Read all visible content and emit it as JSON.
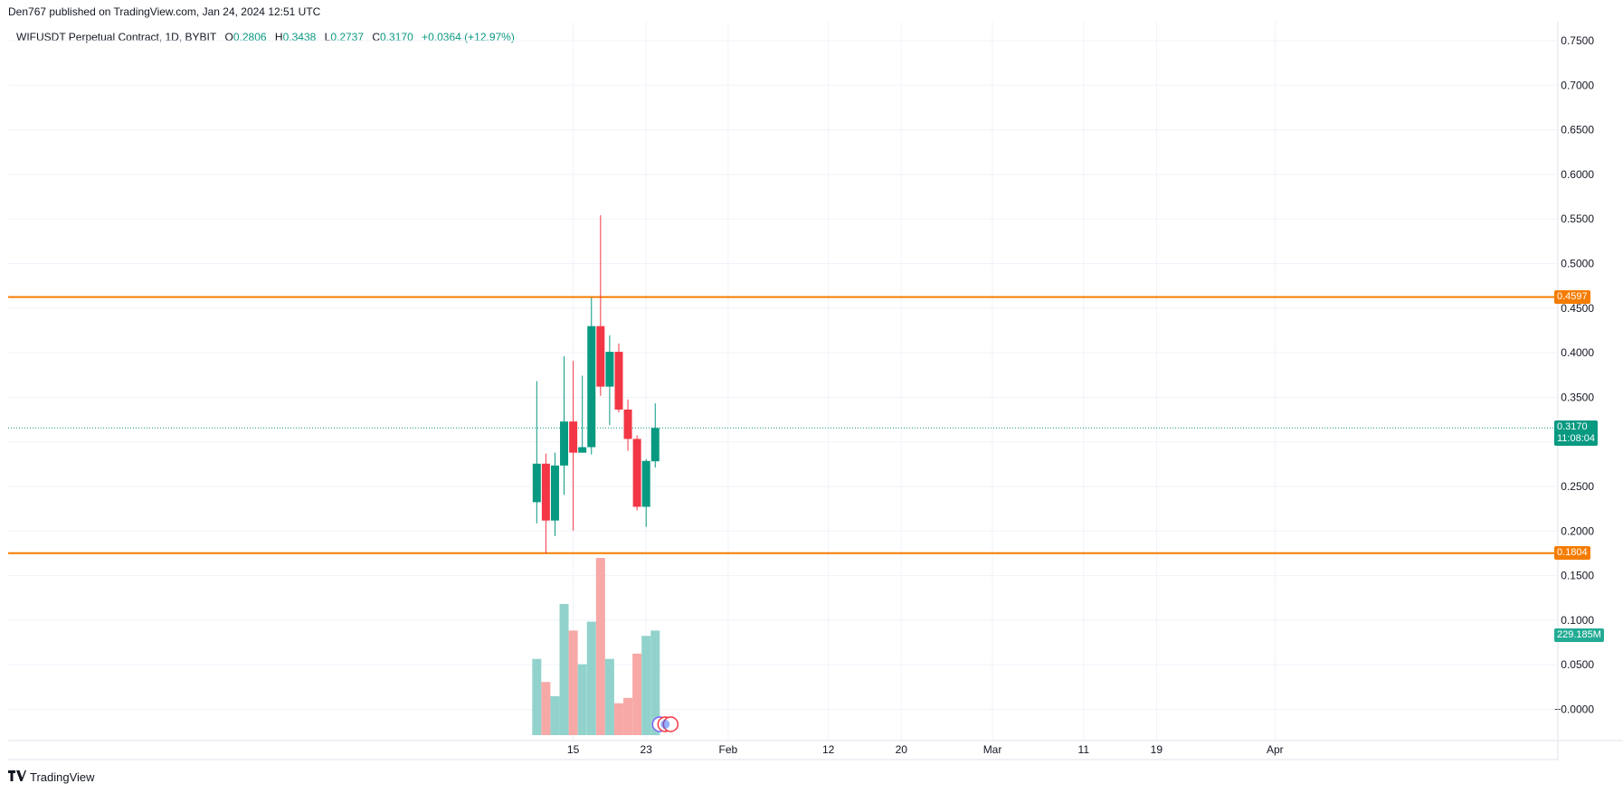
{
  "header": {
    "publish_line": "Den767 published on TradingView.com, Jan 24, 2024 12:51 UTC"
  },
  "legend": {
    "symbol": "WIFUSDT Perpetual Contract, 1D, BYBIT",
    "o_label": "O",
    "o_value": "0.2806",
    "h_label": "H",
    "h_value": "0.3438",
    "l_label": "L",
    "l_value": "0.2737",
    "c_label": "C",
    "c_value": "0.3170",
    "change": "+0.0364 (+12.97%)"
  },
  "colors": {
    "up": "#089981",
    "down": "#f23645",
    "level": "#f57c00",
    "up_vol": "#92d2cc",
    "down_vol": "#f7a9a7",
    "grid": "#f0f3fa"
  },
  "price_labels": {
    "resistance": "0.4597",
    "support": "0.1804",
    "last_price": "0.3170",
    "countdown": "11:08:04",
    "volume": "229.185M"
  },
  "footer": {
    "brand": "TradingView"
  },
  "chart_data": {
    "type": "candlestick",
    "symbol": "WIFUSDT Perpetual Contract",
    "interval": "1D",
    "exchange": "BYBIT",
    "y_ticks": [
      "0.7500",
      "0.7000",
      "0.6500",
      "0.6000",
      "0.5500",
      "0.5000",
      "0.4500",
      "0.4000",
      "0.3500",
      "0.3000",
      "0.2500",
      "0.2000",
      "0.1500",
      "0.1000",
      "0.0500",
      "−0.0000"
    ],
    "y_range": [
      -0.02,
      0.76
    ],
    "x_ticks": [
      {
        "label": "15",
        "day": 15
      },
      {
        "label": "23",
        "day": 23
      },
      {
        "label": "Feb",
        "day": 32
      },
      {
        "label": "12",
        "day": 43
      },
      {
        "label": "20",
        "day": 51
      },
      {
        "label": "Mar",
        "day": 61
      },
      {
        "label": "11",
        "day": 71
      },
      {
        "label": "19",
        "day": 79
      },
      {
        "label": "Apr",
        "day": 92
      }
    ],
    "x_range": [
      -47,
      101
    ],
    "candles": [
      {
        "day": 11,
        "o": 0.236,
        "h": 0.368,
        "l": 0.213,
        "c": 0.278
      },
      {
        "day": 12,
        "o": 0.278,
        "h": 0.289,
        "l": 0.18,
        "c": 0.216
      },
      {
        "day": 13,
        "o": 0.216,
        "h": 0.29,
        "l": 0.199,
        "c": 0.276
      },
      {
        "day": 14,
        "o": 0.276,
        "h": 0.395,
        "l": 0.244,
        "c": 0.324
      },
      {
        "day": 15,
        "o": 0.324,
        "h": 0.39,
        "l": 0.205,
        "c": 0.29
      },
      {
        "day": 16,
        "o": 0.29,
        "h": 0.374,
        "l": 0.29,
        "c": 0.296
      },
      {
        "day": 17,
        "o": 0.296,
        "h": 0.459,
        "l": 0.288,
        "c": 0.428
      },
      {
        "day": 18,
        "o": 0.428,
        "h": 0.549,
        "l": 0.352,
        "c": 0.362
      },
      {
        "day": 19,
        "o": 0.362,
        "h": 0.418,
        "l": 0.32,
        "c": 0.4
      },
      {
        "day": 20,
        "o": 0.4,
        "h": 0.409,
        "l": 0.334,
        "c": 0.337
      },
      {
        "day": 21,
        "o": 0.337,
        "h": 0.348,
        "l": 0.292,
        "c": 0.305
      },
      {
        "day": 22,
        "o": 0.305,
        "h": 0.309,
        "l": 0.227,
        "c": 0.231
      },
      {
        "day": 23,
        "o": 0.231,
        "h": 0.283,
        "l": 0.209,
        "c": 0.281
      },
      {
        "day": 24,
        "o": 0.2806,
        "h": 0.3438,
        "l": 0.2737,
        "c": 0.317
      }
    ],
    "volume_relative": [
      0.43,
      0.3,
      0.22,
      0.74,
      0.59,
      0.4,
      0.64,
      1.0,
      0.43,
      0.18,
      0.21,
      0.46,
      0.56,
      0.59
    ],
    "levels": [
      {
        "name": "resistance",
        "value": 0.4597
      },
      {
        "name": "support",
        "value": 0.1804
      }
    ],
    "last_price": 0.317,
    "last_volume": "229.185M",
    "grid": true
  }
}
